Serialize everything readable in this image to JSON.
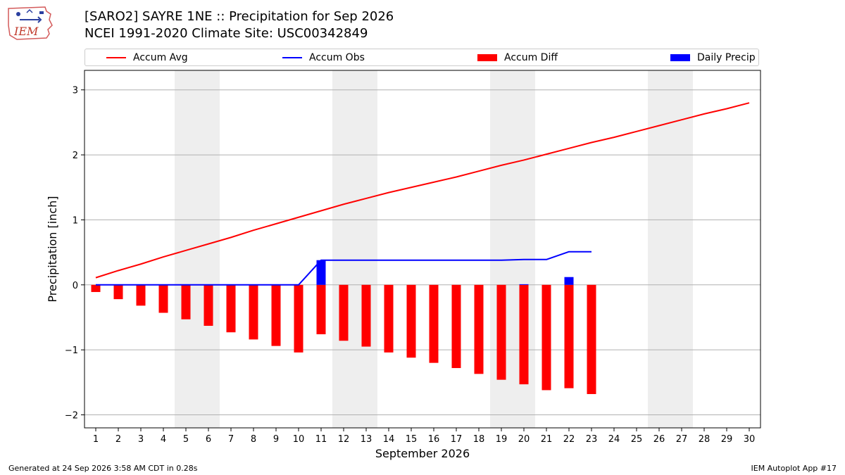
{
  "header": {
    "logo_text": "IEM",
    "title_line1": "[SARO2] SAYRE 1NE :: Precipitation for Sep 2026",
    "title_line2": "NCEI 1991-2020 Climate Site: USC00342849"
  },
  "footer": {
    "left": "Generated at 24 Sep 2026 3:58 AM CDT in 0.28s",
    "right": "IEM Autoplot App #17"
  },
  "colors": {
    "accum_avg": "#ff0000",
    "accum_obs": "#0000ff",
    "accum_diff": "#ff0000",
    "daily_precip": "#0000ff",
    "weekend_band": "#eeeeee",
    "grid": "#b0b0b0"
  },
  "chart_data": {
    "type": "bar",
    "xlabel": "September 2026",
    "ylabel": "Precipitation [inch]",
    "xlim": [
      0.5,
      30.5
    ],
    "ylim": [
      -2.2,
      3.3
    ],
    "yticks": [
      -2,
      -1,
      0,
      1,
      2,
      3
    ],
    "ytick_labels": [
      "−2",
      "−1",
      "0",
      "1",
      "2",
      "3"
    ],
    "xticks": [
      1,
      2,
      3,
      4,
      5,
      6,
      7,
      8,
      9,
      10,
      11,
      12,
      13,
      14,
      15,
      16,
      17,
      18,
      19,
      20,
      21,
      22,
      23,
      24,
      25,
      26,
      27,
      28,
      29,
      30
    ],
    "xtick_labels": [
      "1",
      "2",
      "3",
      "4",
      "5",
      "6",
      "7",
      "8",
      "9",
      "10",
      "11",
      "12",
      "13",
      "14",
      "15",
      "16",
      "17",
      "18",
      "19",
      "20",
      "21",
      "22",
      "23",
      "24",
      "25",
      "26",
      "27",
      "28",
      "29",
      "30"
    ],
    "grid": "horizontal",
    "legend_position": "top",
    "weekend_bands": [
      [
        4.5,
        6.5
      ],
      [
        11.5,
        13.5
      ],
      [
        18.5,
        20.5
      ],
      [
        25.5,
        27.5
      ]
    ],
    "series": [
      {
        "name": "Accum Avg",
        "kind": "line",
        "x": [
          1,
          2,
          3,
          4,
          5,
          6,
          7,
          8,
          9,
          10,
          11,
          12,
          13,
          14,
          15,
          16,
          17,
          18,
          19,
          20,
          21,
          22,
          23,
          24,
          25,
          26,
          27,
          28,
          29,
          30
        ],
        "values": [
          0.11,
          0.22,
          0.32,
          0.43,
          0.53,
          0.63,
          0.73,
          0.84,
          0.94,
          1.04,
          1.14,
          1.24,
          1.33,
          1.42,
          1.5,
          1.58,
          1.66,
          1.75,
          1.84,
          1.92,
          2.01,
          2.1,
          2.19,
          2.27,
          2.36,
          2.45,
          2.54,
          2.63,
          2.71,
          2.8
        ]
      },
      {
        "name": "Accum Obs",
        "kind": "line",
        "x": [
          1,
          2,
          3,
          4,
          5,
          6,
          7,
          8,
          9,
          10,
          11,
          12,
          13,
          14,
          15,
          16,
          17,
          18,
          19,
          20,
          21,
          22,
          23
        ],
        "values": [
          0,
          0,
          0,
          0,
          0,
          0,
          0,
          0,
          0,
          0,
          0.38,
          0.38,
          0.38,
          0.38,
          0.38,
          0.38,
          0.38,
          0.38,
          0.38,
          0.39,
          0.39,
          0.51,
          0.51
        ]
      },
      {
        "name": "Accum Diff",
        "kind": "bar",
        "x": [
          1,
          2,
          3,
          4,
          5,
          6,
          7,
          8,
          9,
          10,
          11,
          12,
          13,
          14,
          15,
          16,
          17,
          18,
          19,
          20,
          21,
          22,
          23
        ],
        "values": [
          -0.11,
          -0.22,
          -0.32,
          -0.43,
          -0.53,
          -0.63,
          -0.73,
          -0.84,
          -0.94,
          -1.04,
          -0.76,
          -0.86,
          -0.95,
          -1.04,
          -1.12,
          -1.2,
          -1.28,
          -1.37,
          -1.46,
          -1.53,
          -1.62,
          -1.59,
          -1.68
        ]
      },
      {
        "name": "Daily Precip",
        "kind": "bar",
        "x": [
          1,
          2,
          3,
          4,
          5,
          6,
          7,
          8,
          9,
          10,
          11,
          12,
          13,
          14,
          15,
          16,
          17,
          18,
          19,
          20,
          21,
          22,
          23
        ],
        "values": [
          0,
          0,
          0,
          0,
          0,
          0,
          0,
          0,
          0,
          0,
          0.38,
          0,
          0,
          0,
          0,
          0,
          0,
          0,
          0,
          0.01,
          0,
          0.12,
          0
        ]
      }
    ]
  }
}
